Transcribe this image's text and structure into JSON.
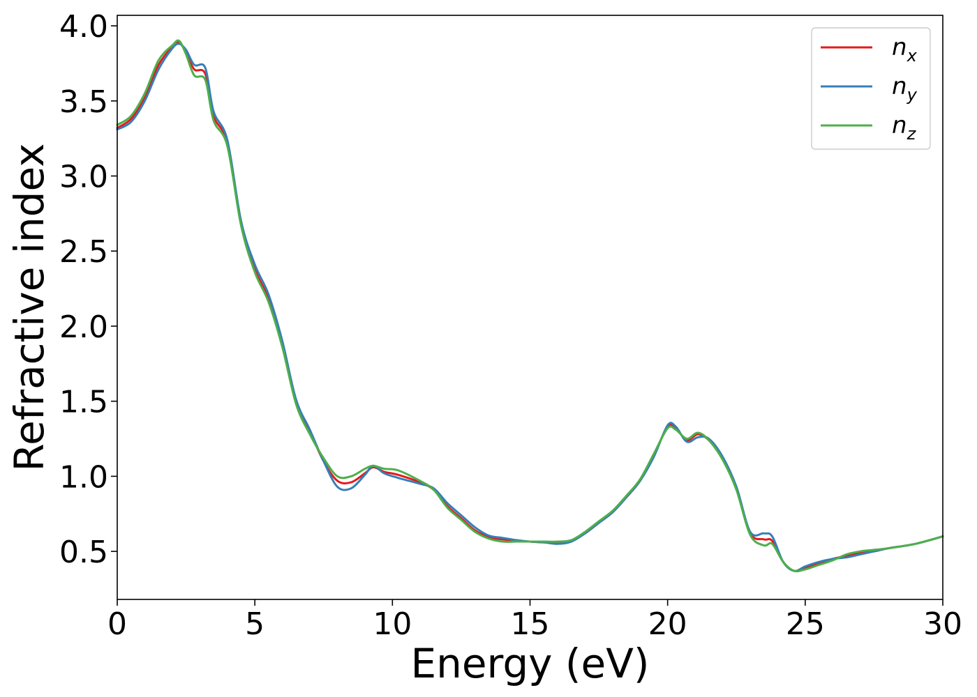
{
  "chart_data": {
    "type": "line",
    "title": "",
    "xlabel": "Energy (eV)",
    "ylabel": "Refractive index",
    "xlim": [
      0,
      30
    ],
    "ylim": [
      0.18,
      4.07
    ],
    "xticks": [
      0,
      5,
      10,
      15,
      20,
      25,
      30
    ],
    "yticks": [
      0.5,
      1.0,
      1.5,
      2.0,
      2.5,
      3.0,
      3.5,
      4.0
    ],
    "xtick_labels": [
      "0",
      "5",
      "10",
      "15",
      "20",
      "25",
      "30"
    ],
    "ytick_labels": [
      "0.5",
      "1.0",
      "1.5",
      "2.0",
      "2.5",
      "3.0",
      "3.5",
      "4.0"
    ],
    "grid": false,
    "legend": "top-right",
    "series": [
      {
        "name": "n",
        "subscript": "x",
        "color": "#e41a1c",
        "x": [
          0,
          0.5,
          1.0,
          1.5,
          2.0,
          2.25,
          2.5,
          2.8,
          3.2,
          3.5,
          4.0,
          4.5,
          5.0,
          5.5,
          6.0,
          6.5,
          7.0,
          7.5,
          8.0,
          8.5,
          9.0,
          9.3,
          9.7,
          10.2,
          11.0,
          11.5,
          12.0,
          12.5,
          13.0,
          13.5,
          14.0,
          14.5,
          15.0,
          15.5,
          16.0,
          16.5,
          17.0,
          17.5,
          18.0,
          18.5,
          19.0,
          19.5,
          20.0,
          20.3,
          20.7,
          21.1,
          21.5,
          22.0,
          22.5,
          23.0,
          23.5,
          23.8,
          24.2,
          24.6,
          25.0,
          25.5,
          26.0,
          26.5,
          27.0,
          27.5,
          28.0,
          29.0,
          30.0
        ],
        "y": [
          3.32,
          3.38,
          3.52,
          3.74,
          3.86,
          3.89,
          3.82,
          3.71,
          3.68,
          3.4,
          3.22,
          2.68,
          2.38,
          2.18,
          1.88,
          1.5,
          1.3,
          1.1,
          0.97,
          0.96,
          1.02,
          1.06,
          1.03,
          1.01,
          0.96,
          0.91,
          0.8,
          0.72,
          0.64,
          0.595,
          0.58,
          0.57,
          0.565,
          0.56,
          0.56,
          0.57,
          0.62,
          0.69,
          0.76,
          0.86,
          0.97,
          1.14,
          1.33,
          1.32,
          1.24,
          1.28,
          1.24,
          1.12,
          0.92,
          0.62,
          0.58,
          0.57,
          0.43,
          0.37,
          0.39,
          0.42,
          0.45,
          0.47,
          0.49,
          0.5,
          0.52,
          0.55,
          0.6
        ]
      },
      {
        "name": "n",
        "subscript": "y",
        "color": "#377eb8",
        "x": [
          0,
          0.5,
          1.0,
          1.5,
          2.0,
          2.25,
          2.5,
          2.8,
          3.2,
          3.5,
          4.0,
          4.5,
          5.0,
          5.5,
          6.0,
          6.5,
          7.0,
          7.5,
          8.0,
          8.5,
          9.0,
          9.3,
          9.7,
          10.2,
          11.0,
          11.5,
          12.0,
          12.5,
          13.0,
          13.5,
          14.0,
          14.5,
          15.0,
          15.5,
          16.0,
          16.5,
          17.0,
          17.5,
          18.0,
          18.5,
          19.0,
          19.5,
          20.0,
          20.3,
          20.7,
          21.1,
          21.5,
          22.0,
          22.5,
          23.0,
          23.5,
          23.8,
          24.2,
          24.6,
          25.0,
          25.5,
          26.0,
          26.5,
          27.0,
          27.5,
          28.0,
          29.0,
          30.0
        ],
        "y": [
          3.31,
          3.36,
          3.5,
          3.71,
          3.85,
          3.88,
          3.84,
          3.74,
          3.72,
          3.43,
          3.24,
          2.7,
          2.41,
          2.21,
          1.9,
          1.51,
          1.31,
          1.1,
          0.93,
          0.92,
          1.01,
          1.07,
          1.02,
          0.99,
          0.95,
          0.92,
          0.82,
          0.74,
          0.66,
          0.605,
          0.59,
          0.575,
          0.565,
          0.56,
          0.55,
          0.565,
          0.62,
          0.69,
          0.76,
          0.86,
          0.97,
          1.13,
          1.34,
          1.33,
          1.23,
          1.26,
          1.25,
          1.13,
          0.93,
          0.63,
          0.62,
          0.6,
          0.43,
          0.37,
          0.4,
          0.43,
          0.45,
          0.46,
          0.48,
          0.5,
          0.52,
          0.55,
          0.6
        ]
      },
      {
        "name": "n",
        "subscript": "z",
        "color": "#4daf4a",
        "x": [
          0,
          0.5,
          1.0,
          1.5,
          2.0,
          2.25,
          2.5,
          2.8,
          3.2,
          3.5,
          4.0,
          4.5,
          5.0,
          5.5,
          6.0,
          6.5,
          7.0,
          7.5,
          8.0,
          8.5,
          9.0,
          9.3,
          9.7,
          10.2,
          11.0,
          11.5,
          12.0,
          12.5,
          13.0,
          13.5,
          14.0,
          14.5,
          15.0,
          15.5,
          16.0,
          16.5,
          17.0,
          17.5,
          18.0,
          18.5,
          19.0,
          19.5,
          20.0,
          20.3,
          20.7,
          21.1,
          21.5,
          22.0,
          22.5,
          23.0,
          23.5,
          23.8,
          24.2,
          24.6,
          25.0,
          25.5,
          26.0,
          26.5,
          27.0,
          27.5,
          28.0,
          29.0,
          30.0
        ],
        "y": [
          3.34,
          3.4,
          3.55,
          3.77,
          3.87,
          3.9,
          3.81,
          3.67,
          3.64,
          3.37,
          3.2,
          2.67,
          2.36,
          2.16,
          1.86,
          1.48,
          1.28,
          1.12,
          1.0,
          1.0,
          1.05,
          1.07,
          1.05,
          1.04,
          0.97,
          0.91,
          0.79,
          0.71,
          0.63,
          0.585,
          0.565,
          0.565,
          0.565,
          0.565,
          0.565,
          0.575,
          0.63,
          0.7,
          0.77,
          0.87,
          0.98,
          1.15,
          1.32,
          1.31,
          1.25,
          1.29,
          1.24,
          1.11,
          0.91,
          0.61,
          0.54,
          0.55,
          0.43,
          0.37,
          0.38,
          0.41,
          0.44,
          0.48,
          0.5,
          0.51,
          0.52,
          0.55,
          0.6
        ]
      }
    ]
  }
}
